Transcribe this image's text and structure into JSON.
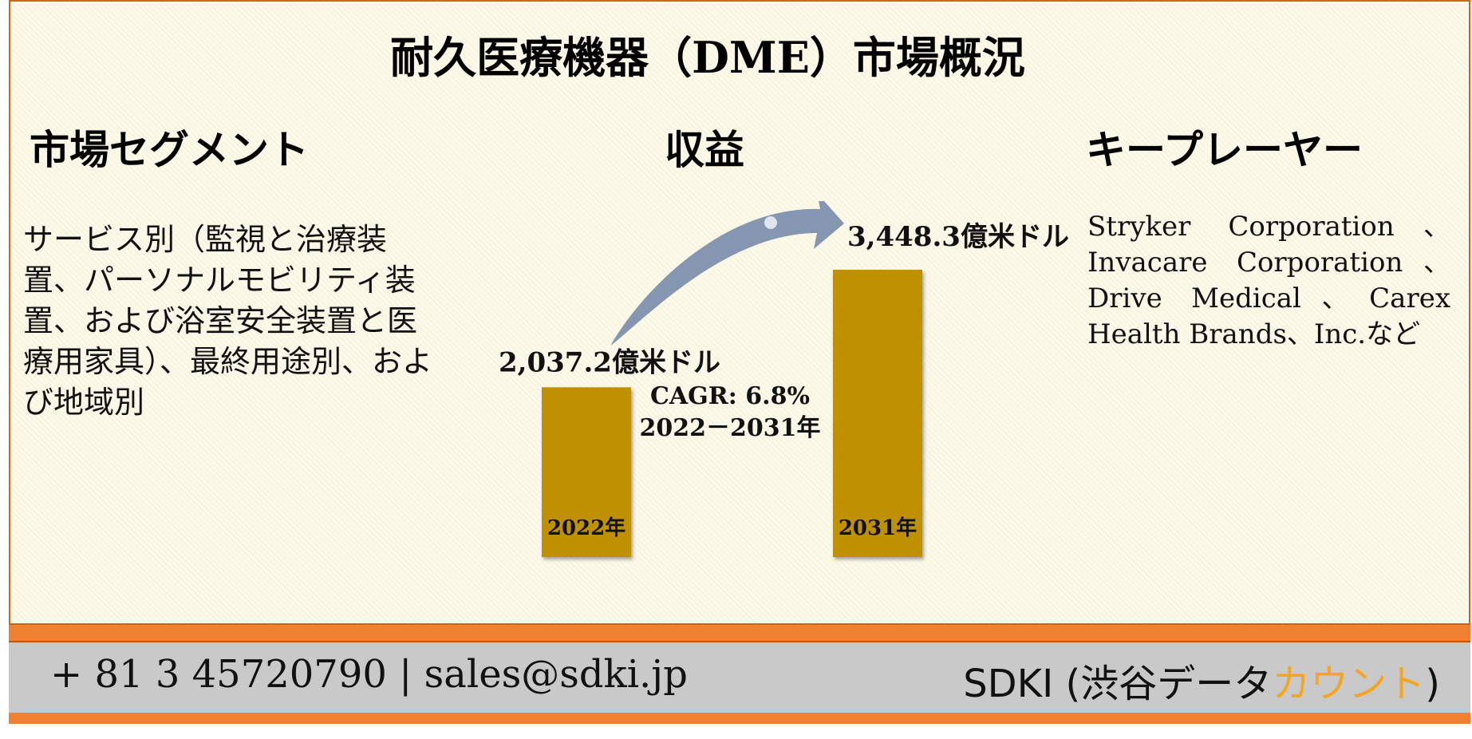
{
  "title": "耐久医療機器（DME）市場概況",
  "sections": {
    "segment": {
      "heading": "市場セグメント",
      "text": "サービス別（監視と治療装置、パーソナルモビリティ装置、および浴室安全装置と医療用家具）、最終用途別、および地域別"
    },
    "revenue": {
      "heading": "収益"
    },
    "key_players": {
      "heading": "キープレーヤー",
      "text": "Stryker Corporation、Invacare Corporation、Drive Medical、Carex Health Brands、Inc.など"
    }
  },
  "chart_data": {
    "type": "bar",
    "categories": [
      "2022年",
      "2031年"
    ],
    "values": [
      2037.2,
      3448.3
    ],
    "value_labels": [
      "2,037.2億米ドル",
      "3,448.3億米ドル"
    ],
    "annotation": [
      "CAGR: 6.8%",
      "2022－2031年"
    ],
    "colors": {
      "bar": "#bf9000",
      "arrow": "#8496b0"
    }
  },
  "footer": {
    "contact": "+ 81 3 45720790 | sales@sdki.jp",
    "brand_prefix": "SDKI (渋谷データ",
    "brand_accent": "カウント",
    "brand_suffix": ")",
    "colors": {
      "bar": "#c9c9c9",
      "accent": "#ee8232",
      "brand_accent": "#f4a522"
    }
  }
}
